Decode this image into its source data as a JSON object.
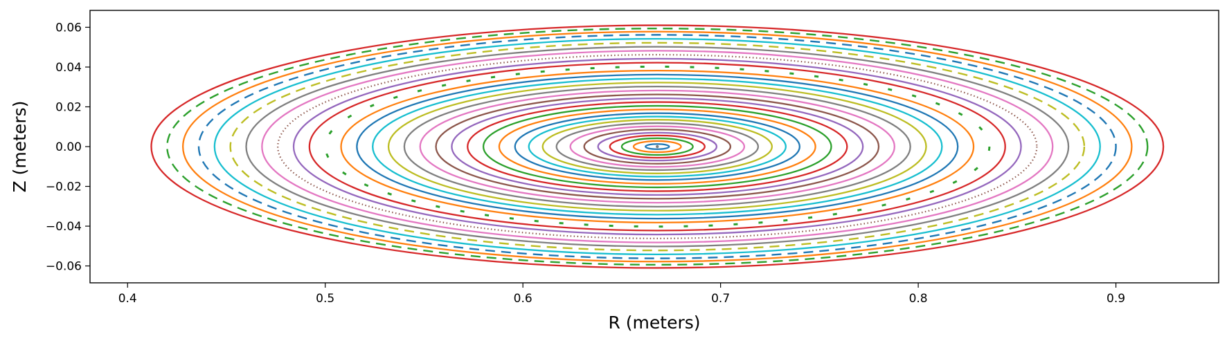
{
  "chart_data": {
    "type": "scatter",
    "title": "",
    "xlabel": "R (meters)",
    "ylabel": "Z (meters)",
    "xlim": [
      0.381,
      0.952
    ],
    "ylim": [
      -0.0685,
      0.0685
    ],
    "xticks": [
      0.4,
      0.5,
      0.6,
      0.7,
      0.8,
      0.9
    ],
    "xtick_labels": [
      "0.4",
      "0.5",
      "0.6",
      "0.7",
      "0.8",
      "0.9"
    ],
    "yticks": [
      0.06,
      0.04,
      0.02,
      0.0,
      -0.02,
      -0.04,
      -0.06
    ],
    "ytick_labels": [
      "0.06",
      "0.04",
      "0.02",
      "0.00",
      "−0.02",
      "−0.04",
      "−0.06"
    ],
    "grid": false,
    "legend": false,
    "center": {
      "R": 0.668,
      "Z": 0.0
    },
    "palette": [
      "#1f77b4",
      "#ff7f0e",
      "#2ca02c",
      "#d62728",
      "#9467bd",
      "#8c564b",
      "#e377c2",
      "#7f7f7f",
      "#bcbd22",
      "#17becf"
    ],
    "surfaces": [
      {
        "a": 0.006,
        "b": 0.0013,
        "style": "continuous"
      },
      {
        "a": 0.012,
        "b": 0.0028,
        "style": "continuous"
      },
      {
        "a": 0.018,
        "b": 0.0042,
        "style": "continuous"
      },
      {
        "a": 0.024,
        "b": 0.0056,
        "style": "continuous"
      },
      {
        "a": 0.03,
        "b": 0.007,
        "style": "continuous"
      },
      {
        "a": 0.037,
        "b": 0.0086,
        "style": "continuous"
      },
      {
        "a": 0.044,
        "b": 0.0102,
        "style": "continuous"
      },
      {
        "a": 0.051,
        "b": 0.0118,
        "style": "continuous"
      },
      {
        "a": 0.058,
        "b": 0.0135,
        "style": "continuous"
      },
      {
        "a": 0.065,
        "b": 0.0151,
        "style": "continuous"
      },
      {
        "a": 0.072,
        "b": 0.0168,
        "style": "continuous"
      },
      {
        "a": 0.08,
        "b": 0.0187,
        "style": "continuous"
      },
      {
        "a": 0.088,
        "b": 0.0205,
        "style": "continuous"
      },
      {
        "a": 0.096,
        "b": 0.0224,
        "style": "continuous"
      },
      {
        "a": 0.104,
        "b": 0.0243,
        "style": "continuous"
      },
      {
        "a": 0.112,
        "b": 0.0262,
        "style": "continuous"
      },
      {
        "a": 0.12,
        "b": 0.0282,
        "style": "continuous"
      },
      {
        "a": 0.128,
        "b": 0.0302,
        "style": "continuous"
      },
      {
        "a": 0.136,
        "b": 0.0322,
        "style": "continuous"
      },
      {
        "a": 0.144,
        "b": 0.0342,
        "style": "continuous"
      },
      {
        "a": 0.152,
        "b": 0.0362,
        "style": "continuous"
      },
      {
        "a": 0.16,
        "b": 0.0382,
        "style": "continuous"
      },
      {
        "a": 0.168,
        "b": 0.0402,
        "style": "islands"
      },
      {
        "a": 0.176,
        "b": 0.0422,
        "style": "continuous"
      },
      {
        "a": 0.184,
        "b": 0.0442,
        "style": "continuous"
      },
      {
        "a": 0.192,
        "b": 0.0462,
        "style": "dotted"
      },
      {
        "a": 0.2,
        "b": 0.0482,
        "style": "continuous"
      },
      {
        "a": 0.208,
        "b": 0.0502,
        "style": "continuous"
      },
      {
        "a": 0.216,
        "b": 0.0522,
        "style": "dashed"
      },
      {
        "a": 0.224,
        "b": 0.0542,
        "style": "continuous"
      },
      {
        "a": 0.232,
        "b": 0.0562,
        "style": "dashed"
      },
      {
        "a": 0.24,
        "b": 0.0578,
        "style": "continuous"
      },
      {
        "a": 0.248,
        "b": 0.0594,
        "style": "dashed"
      },
      {
        "a": 0.256,
        "b": 0.061,
        "style": "continuous"
      }
    ]
  }
}
